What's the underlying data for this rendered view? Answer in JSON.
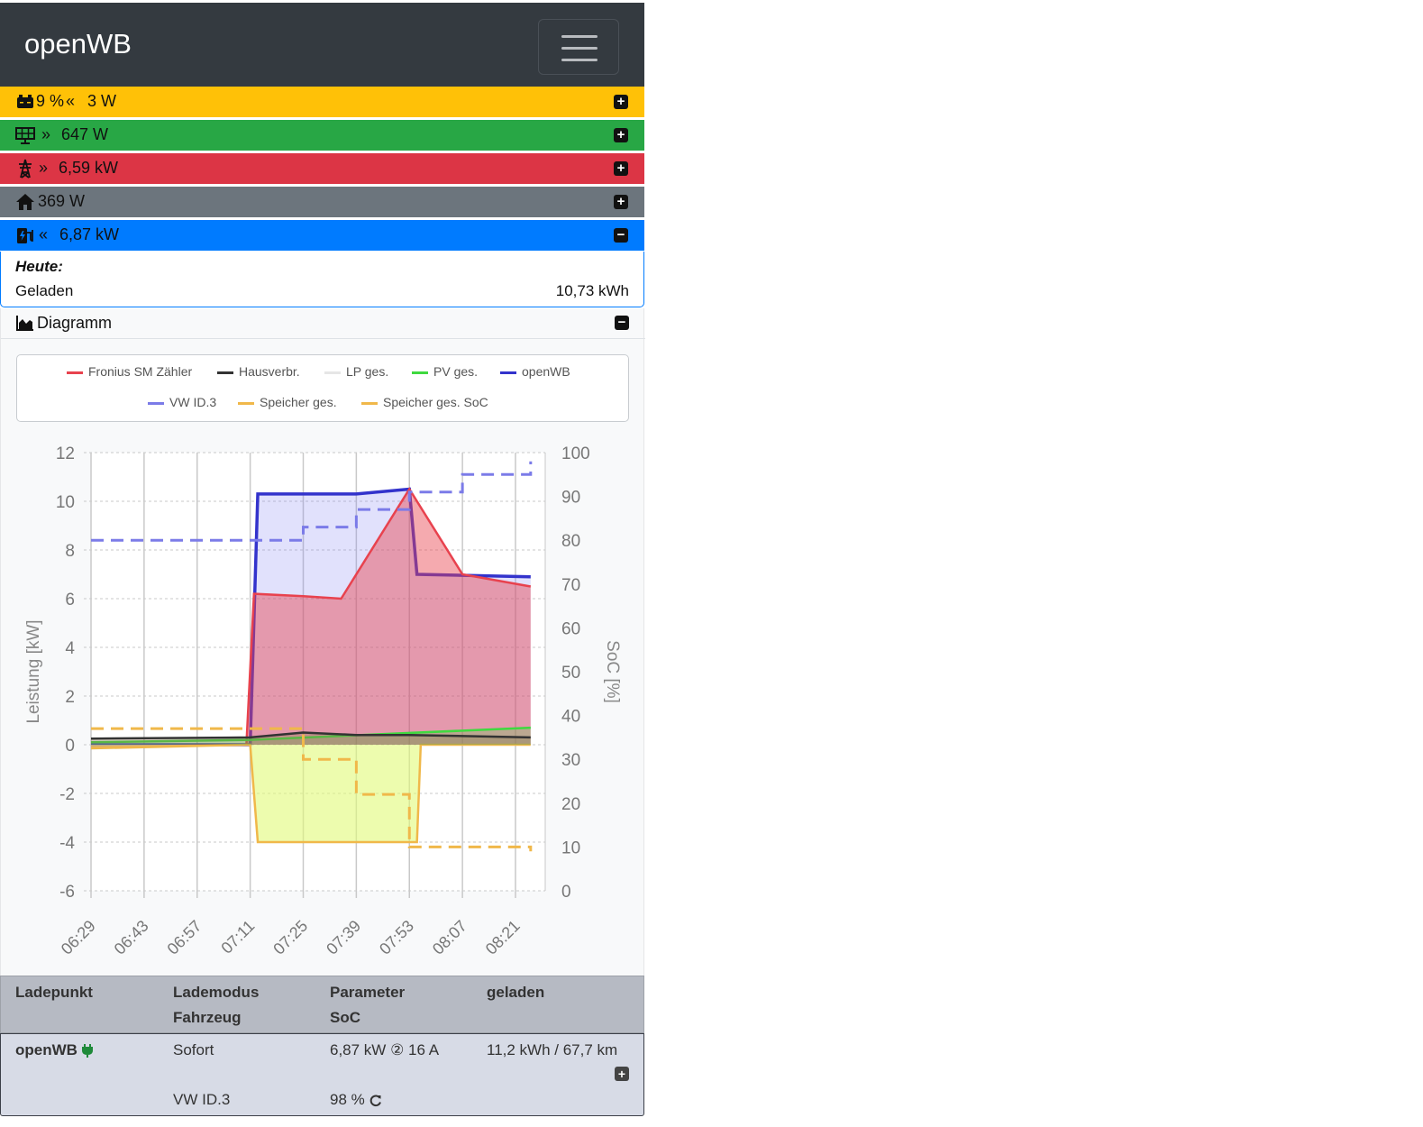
{
  "navbar": {
    "brand": "openWB",
    "menu_icon": "hamburger-icon"
  },
  "status_bars": {
    "battery": {
      "text": "9 % ",
      "power": "3 W",
      "icon": "battery-icon",
      "arrow": "«",
      "color": "#ffc107"
    },
    "pv": {
      "power": "647 W",
      "icon": "solar-panel-icon",
      "arrow": "»",
      "color": "#28a745"
    },
    "grid": {
      "power": "6,59 kW",
      "icon": "power-tower-icon",
      "arrow": "»",
      "color": "#dc3545"
    },
    "house": {
      "power": "369 W",
      "icon": "home-icon",
      "color": "#6c757d"
    },
    "charge": {
      "power": "6,87 kW",
      "icon": "charging-station-icon",
      "arrow": "«",
      "color": "#007bff"
    }
  },
  "today": {
    "heading": "Heute:",
    "label": "Geladen",
    "value": "10,73 kWh"
  },
  "diagram": {
    "title": "Diagramm",
    "icon": "area-chart-icon"
  },
  "chart_data": {
    "type": "area",
    "xlabel": "",
    "ylabel": "Leistung [kW]",
    "y2label": "SoC [%]",
    "ylim": [
      -6,
      12
    ],
    "y2lim": [
      0,
      100
    ],
    "yticks": [
      "12",
      "10",
      "8",
      "6",
      "4",
      "2",
      "0",
      "-2",
      "-4",
      "-6"
    ],
    "y2ticks": [
      "100",
      "90",
      "80",
      "70",
      "60",
      "50",
      "40",
      "30",
      "20",
      "10",
      "0"
    ],
    "categories": [
      "06:29",
      "06:43",
      "06:57",
      "07:11",
      "07:25",
      "07:39",
      "07:53",
      "08:07",
      "08:21"
    ],
    "grid": true,
    "legend_position": "top",
    "series": [
      {
        "name": "Fronius SM Zähler",
        "color": "#e8424e",
        "x": [
          "06:29",
          "07:10",
          "07:12",
          "07:25",
          "07:35",
          "07:53",
          "08:07",
          "08:25"
        ],
        "values": [
          -0.1,
          0,
          6.2,
          6.1,
          6.0,
          10.5,
          7.0,
          6.5
        ]
      },
      {
        "name": "Hausverbr.",
        "color": "#333333",
        "x": [
          "06:29",
          "07:11",
          "07:25",
          "07:39",
          "07:53",
          "08:25"
        ],
        "values": [
          0.25,
          0.3,
          0.5,
          0.4,
          0.4,
          0.3
        ]
      },
      {
        "name": "LP ges.",
        "color": "#e6e6e6",
        "x": [],
        "values": []
      },
      {
        "name": "PV ges.",
        "color": "#3fd93f",
        "x": [
          "06:29",
          "07:11",
          "08:25"
        ],
        "values": [
          0.1,
          0.2,
          0.7
        ]
      },
      {
        "name": "openWB",
        "color": "#3333cc",
        "x": [
          "06:29",
          "07:11",
          "07:13",
          "07:39",
          "07:53",
          "07:55",
          "08:25"
        ],
        "values": [
          0,
          0,
          10.3,
          10.3,
          10.5,
          7.0,
          6.9
        ]
      },
      {
        "name": "VW ID.3",
        "color": "#7b7be8",
        "dashed": true,
        "axis": "y2",
        "x": [
          "06:29",
          "07:11",
          "07:25",
          "07:39",
          "07:53",
          "08:07",
          "08:25"
        ],
        "values": [
          80,
          80,
          83,
          87,
          91,
          95,
          98
        ]
      },
      {
        "name": "Speicher ges.",
        "color": "#f0b84a",
        "x": [
          "06:29",
          "07:11",
          "07:13",
          "07:55",
          "07:56",
          "08:25"
        ],
        "values": [
          -0.15,
          0,
          -4.0,
          -4.0,
          0,
          0
        ]
      },
      {
        "name": "Speicher ges. SoC",
        "color": "#f0b84a",
        "dashed": true,
        "axis": "y2",
        "x": [
          "06:29",
          "07:11",
          "07:25",
          "07:39",
          "07:53",
          "08:07",
          "08:25"
        ],
        "values": [
          37,
          37,
          30,
          22,
          10,
          10,
          9
        ]
      }
    ]
  },
  "table": {
    "headers": {
      "c1": "Ladepunkt",
      "c2a": "Lademodus",
      "c2b": "Fahrzeug",
      "c3a": "Parameter",
      "c3b": "SoC",
      "c4": "geladen"
    },
    "row": {
      "ladepunkt": "openWB",
      "plug_icon": "plug-icon",
      "lademodus": "Sofort",
      "fahrzeug": "VW ID.3",
      "parameter": "6,87 kW ② 16 A",
      "soc": "98 % ",
      "refresh_icon": "refresh-icon",
      "geladen": "11,2 kWh / 67,7 km"
    }
  }
}
